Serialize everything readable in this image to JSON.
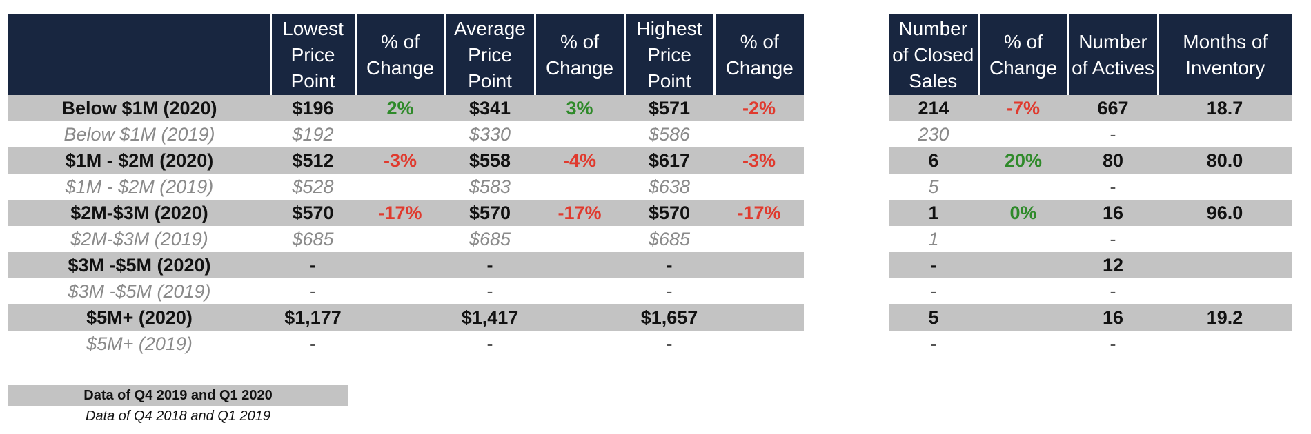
{
  "left_table": {
    "headers": [
      "",
      "Lowest\nPrice\nPoint",
      "% of\nChange",
      "Average\nPrice\nPoint",
      "% of\nChange",
      "Highest\nPrice\nPoint",
      "% of\nChange"
    ],
    "rows": [
      {
        "type": "cur",
        "label": "Below $1M (2020)",
        "lowest": "$196",
        "lowest_chg": "2%",
        "avg": "$341",
        "avg_chg": "3%",
        "high": "$571",
        "high_chg": "-2%"
      },
      {
        "type": "prev",
        "label": "Below $1M (2019)",
        "lowest": "$192",
        "lowest_chg": "",
        "avg": "$330",
        "avg_chg": "",
        "high": "$586",
        "high_chg": ""
      },
      {
        "type": "cur",
        "label": "$1M - $2M (2020)",
        "lowest": "$512",
        "lowest_chg": "-3%",
        "avg": "$558",
        "avg_chg": "-4%",
        "high": "$617",
        "high_chg": "-3%"
      },
      {
        "type": "prev",
        "label": "$1M - $2M (2019)",
        "lowest": "$528",
        "lowest_chg": "",
        "avg": "$583",
        "avg_chg": "",
        "high": "$638",
        "high_chg": ""
      },
      {
        "type": "cur",
        "label": "$2M-$3M (2020)",
        "lowest": "$570",
        "lowest_chg": "-17%",
        "avg": "$570",
        "avg_chg": "-17%",
        "high": "$570",
        "high_chg": "-17%"
      },
      {
        "type": "prev",
        "label": "$2M-$3M (2019)",
        "lowest": "$685",
        "lowest_chg": "",
        "avg": "$685",
        "avg_chg": "",
        "high": "$685",
        "high_chg": ""
      },
      {
        "type": "cur",
        "label": "$3M -$5M (2020)",
        "lowest": "-",
        "lowest_chg": "",
        "avg": "-",
        "avg_chg": "",
        "high": "-",
        "high_chg": ""
      },
      {
        "type": "prev",
        "label": "$3M -$5M (2019)",
        "lowest": "-",
        "lowest_chg": "",
        "avg": "-",
        "avg_chg": "",
        "high": "-",
        "high_chg": ""
      },
      {
        "type": "cur",
        "label": "$5M+ (2020)",
        "lowest": "$1,177",
        "lowest_chg": "",
        "avg": "$1,417",
        "avg_chg": "",
        "high": "$1,657",
        "high_chg": ""
      },
      {
        "type": "prev",
        "label": "$5M+ (2019)",
        "lowest": "-",
        "lowest_chg": "",
        "avg": "-",
        "avg_chg": "",
        "high": "-",
        "high_chg": ""
      }
    ]
  },
  "right_table": {
    "headers": [
      "Number\nof Closed\nSales",
      "% of\nChange",
      "Number\nof Actives",
      "Months of\nInventory"
    ],
    "rows": [
      {
        "type": "cur",
        "closed": "214",
        "closed_chg": "-7%",
        "actives": "667",
        "months": "18.7"
      },
      {
        "type": "prev",
        "closed": "230",
        "closed_chg": "",
        "actives": "-",
        "months": ""
      },
      {
        "type": "cur",
        "closed": "6",
        "closed_chg": "20%",
        "actives": "80",
        "months": "80.0"
      },
      {
        "type": "prev",
        "closed": "5",
        "closed_chg": "",
        "actives": "-",
        "months": ""
      },
      {
        "type": "cur",
        "closed": "1",
        "closed_chg": "0%",
        "actives": "16",
        "months": "96.0"
      },
      {
        "type": "prev",
        "closed": "1",
        "closed_chg": "",
        "actives": "-",
        "months": ""
      },
      {
        "type": "cur",
        "closed": "-",
        "closed_chg": "",
        "actives": "12",
        "months": ""
      },
      {
        "type": "prev",
        "closed": "-",
        "closed_chg": "",
        "actives": "-",
        "months": ""
      },
      {
        "type": "cur",
        "closed": "5",
        "closed_chg": "",
        "actives": "16",
        "months": "19.2"
      },
      {
        "type": "prev",
        "closed": "-",
        "closed_chg": "",
        "actives": "-",
        "months": ""
      }
    ]
  },
  "legend": {
    "current": "Data of Q4 2019 and Q1 2020",
    "previous": "Data of Q4 2018 and Q1 2019"
  },
  "colors": {
    "header_bg": "#182640",
    "highlight_row": "#c3c3c3",
    "positive": "#2f8a2a",
    "negative": "#e03a2e"
  }
}
